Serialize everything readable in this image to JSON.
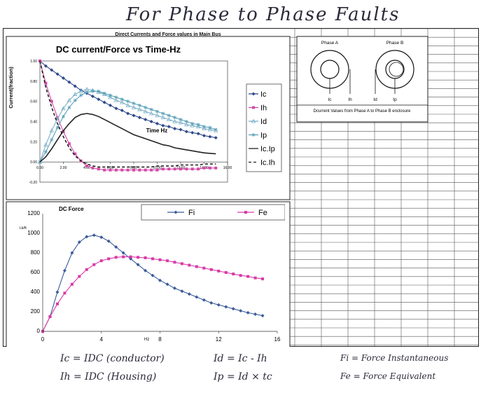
{
  "page": {
    "handwritten_title": "For Phase to Phase Faults",
    "sheet_title": "Direct Currents and Force values in Main Bus"
  },
  "diagram": {
    "phase_a": "Phase A",
    "phase_b": "Phase B",
    "labels": [
      "Ic",
      "Ih",
      "Id",
      "Ip"
    ],
    "caption": "Dcurrent Values from Phase A to Phase B enclosure"
  },
  "equations": [
    "Ic = IDC (conductor)",
    "Ih = IDC (Housing)",
    "Id = Ic - Ih",
    "Ip = Id × tc",
    "Fi = Force Instantaneous",
    "Fe = Force Equivalent"
  ],
  "chart_data": [
    {
      "type": "line",
      "title": "DC current/Force vs Time-Hz",
      "ylabel": "Current(fraction)",
      "xlabel": "Time Hz",
      "xlim": [
        0,
        16
      ],
      "ylim": [
        -0.2,
        1.0
      ],
      "xticks": [
        "0.00",
        "2.00",
        "4.00",
        "6.00",
        "8.00",
        "10.00",
        "12.00",
        "14.00",
        "16.00"
      ],
      "yticks": [
        "-0.20",
        "0.00",
        "0.20",
        "0.40",
        "0.60",
        "0.80",
        "1.00"
      ],
      "legend_position": "right",
      "x": [
        0,
        0.5,
        1,
        1.5,
        2,
        2.5,
        3,
        3.5,
        4,
        4.5,
        5,
        5.5,
        6,
        6.5,
        7,
        7.5,
        8,
        8.5,
        9,
        9.5,
        10,
        10.5,
        11,
        11.5,
        12,
        12.5,
        13,
        13.5,
        14,
        14.5,
        15
      ],
      "series": [
        {
          "name": "Ic",
          "color": "#2e4a8a",
          "marker": "diamond",
          "dash": "",
          "values": [
            1.0,
            0.95,
            0.91,
            0.87,
            0.83,
            0.79,
            0.75,
            0.71,
            0.68,
            0.65,
            0.62,
            0.59,
            0.56,
            0.53,
            0.51,
            0.48,
            0.46,
            0.44,
            0.42,
            0.4,
            0.38,
            0.36,
            0.35,
            0.33,
            0.32,
            0.3,
            0.29,
            0.28,
            0.26,
            0.25,
            0.24
          ]
        },
        {
          "name": "Ih",
          "color": "#d44aa8",
          "marker": "square",
          "dash": "",
          "values": [
            1.0,
            0.78,
            0.6,
            0.44,
            0.3,
            0.18,
            0.08,
            0.01,
            -0.04,
            -0.06,
            -0.07,
            -0.08,
            -0.08,
            -0.08,
            -0.08,
            -0.08,
            -0.08,
            -0.08,
            -0.08,
            -0.08,
            -0.08,
            -0.07,
            -0.07,
            -0.07,
            -0.07,
            -0.07,
            -0.07,
            -0.07,
            -0.06,
            -0.06,
            -0.06
          ]
        },
        {
          "name": "Id",
          "color": "#7ab0c8",
          "marker": "triangle",
          "dash": "",
          "values": [
            0.0,
            0.17,
            0.31,
            0.43,
            0.53,
            0.61,
            0.67,
            0.7,
            0.72,
            0.71,
            0.69,
            0.67,
            0.64,
            0.61,
            0.59,
            0.56,
            0.54,
            0.52,
            0.5,
            0.48,
            0.46,
            0.44,
            0.42,
            0.4,
            0.39,
            0.37,
            0.36,
            0.35,
            0.33,
            0.32,
            0.31
          ]
        },
        {
          "name": "Ip",
          "color": "#5aa0b8",
          "marker": "star",
          "dash": "",
          "values": [
            0.0,
            0.1,
            0.22,
            0.34,
            0.45,
            0.54,
            0.61,
            0.66,
            0.69,
            0.7,
            0.7,
            0.68,
            0.66,
            0.64,
            0.62,
            0.6,
            0.58,
            0.56,
            0.54,
            0.52,
            0.5,
            0.48,
            0.46,
            0.44,
            0.42,
            0.4,
            0.38,
            0.37,
            0.35,
            0.34,
            0.32
          ]
        },
        {
          "name": "Ic.Ip",
          "color": "#222222",
          "marker": "none",
          "dash": "",
          "values": [
            0.0,
            0.05,
            0.13,
            0.22,
            0.31,
            0.38,
            0.44,
            0.47,
            0.48,
            0.47,
            0.45,
            0.42,
            0.39,
            0.36,
            0.33,
            0.3,
            0.27,
            0.25,
            0.23,
            0.21,
            0.19,
            0.17,
            0.16,
            0.14,
            0.13,
            0.12,
            0.11,
            0.1,
            0.09,
            0.085,
            0.08
          ]
        },
        {
          "name": "Ic.Ih",
          "color": "#222222",
          "marker": "none",
          "dash": "4,3",
          "values": [
            1.0,
            0.74,
            0.54,
            0.38,
            0.25,
            0.14,
            0.06,
            0.01,
            -0.02,
            -0.04,
            -0.05,
            -0.05,
            -0.05,
            -0.05,
            -0.05,
            -0.05,
            -0.05,
            -0.05,
            -0.05,
            -0.05,
            -0.04,
            -0.04,
            -0.04,
            -0.04,
            -0.03,
            -0.03,
            -0.03,
            -0.03,
            -0.02,
            -0.02,
            -0.02
          ]
        }
      ]
    },
    {
      "type": "line",
      "title": "DC Force",
      "ylabel": "Lb/ft",
      "xlabel": "Hz",
      "xlim": [
        0,
        16
      ],
      "ylim": [
        0,
        1200
      ],
      "xticks": [
        "0",
        "4",
        "8",
        "12",
        "16"
      ],
      "yticks": [
        "0",
        "200",
        "400",
        "600",
        "800",
        "1000",
        "1200"
      ],
      "legend_position": "top",
      "x": [
        0,
        0.5,
        1,
        1.5,
        2,
        2.5,
        3,
        3.5,
        4,
        4.5,
        5,
        5.5,
        6,
        6.5,
        7,
        7.5,
        8,
        8.5,
        9,
        9.5,
        10,
        10.5,
        11,
        11.5,
        12,
        12.5,
        13,
        13.5,
        14,
        14.5,
        15
      ],
      "series": [
        {
          "name": "Fi",
          "color": "#3a5a9a",
          "marker": "diamond",
          "dash": "",
          "values": [
            0,
            150,
            400,
            620,
            800,
            910,
            965,
            980,
            960,
            920,
            860,
            800,
            740,
            680,
            620,
            570,
            520,
            480,
            440,
            410,
            380,
            350,
            320,
            290,
            270,
            250,
            230,
            210,
            190,
            175,
            160
          ]
        },
        {
          "name": "Fe",
          "color": "#d83aa8",
          "marker": "square",
          "dash": "",
          "values": [
            0,
            150,
            280,
            390,
            480,
            560,
            630,
            680,
            720,
            740,
            755,
            760,
            760,
            755,
            750,
            740,
            730,
            720,
            705,
            690,
            675,
            660,
            645,
            630,
            615,
            600,
            585,
            570,
            560,
            545,
            535
          ]
        }
      ]
    }
  ]
}
